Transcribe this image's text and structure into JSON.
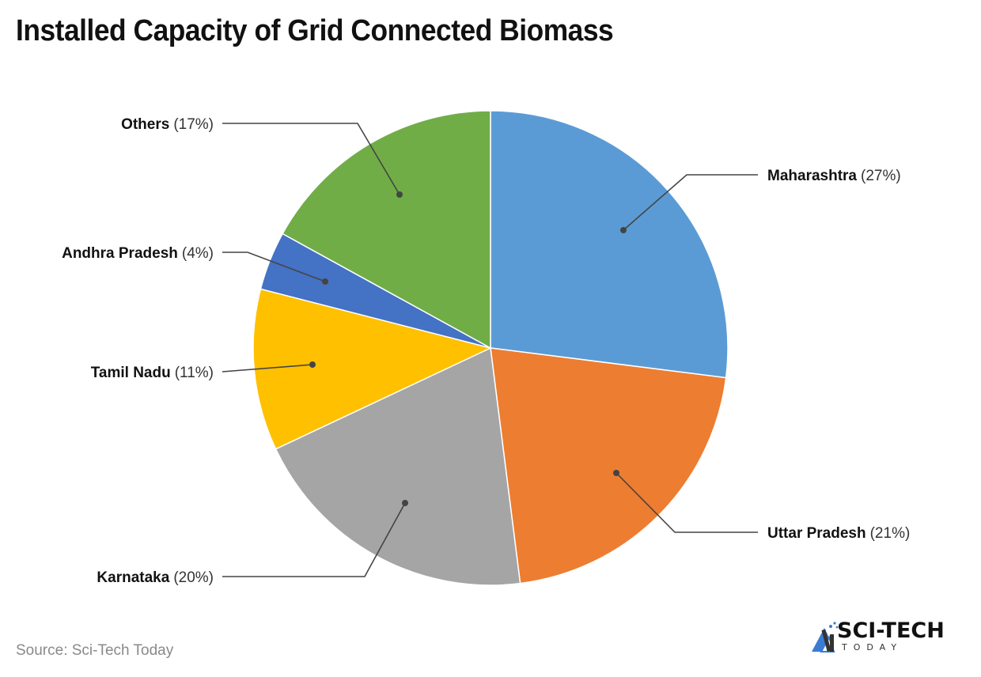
{
  "title": "Installed Capacity of Grid Connected Biomass",
  "source": "Source: Sci-Tech Today",
  "logo": {
    "line1": "SCI-TECH",
    "line2": "TODAY",
    "accent": "#3a7bd5"
  },
  "chart_data": {
    "type": "pie",
    "title": "Installed Capacity of Grid Connected Biomass",
    "start_angle": "12 o'clock, clockwise",
    "categories": [
      "Maharashtra",
      "Uttar Pradesh",
      "Karnataka",
      "Tamil Nadu",
      "Andhra Pradesh",
      "Others"
    ],
    "values": [
      27,
      21,
      20,
      11,
      4,
      17
    ],
    "unit": "%",
    "colors": [
      "#5b9bd5",
      "#ed7d31",
      "#a5a5a5",
      "#ffc000",
      "#4472c4",
      "#70ad47"
    ],
    "labels": [
      {
        "name": "Maharashtra",
        "pct": "(27%)"
      },
      {
        "name": "Uttar Pradesh",
        "pct": "(21%)"
      },
      {
        "name": "Karnataka",
        "pct": "(20%)"
      },
      {
        "name": "Tamil Nadu",
        "pct": "(11%)"
      },
      {
        "name": "Andhra Pradesh",
        "pct": "(4%)"
      },
      {
        "name": "Others",
        "pct": "(17%)"
      }
    ],
    "legend": "none (callout labels)"
  }
}
